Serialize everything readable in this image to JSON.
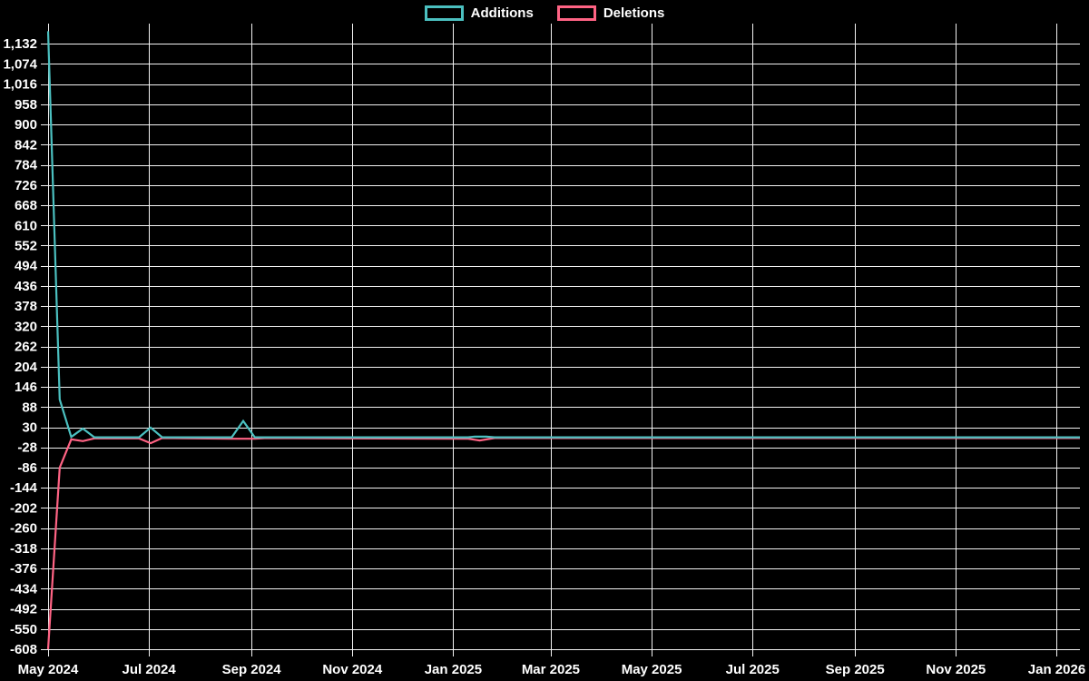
{
  "colors": {
    "background": "#000000",
    "grid": "#f2f2f2",
    "text": "#ffffff",
    "additions": "#4bc0c0",
    "deletions": "#ff6384"
  },
  "legend": {
    "items": [
      {
        "label": "Additions",
        "color": "#4bc0c0"
      },
      {
        "label": "Deletions",
        "color": "#ff6384"
      }
    ]
  },
  "chart_data": {
    "type": "line",
    "title": "",
    "xlabel": "",
    "ylabel": "",
    "grid": true,
    "legend_position": "top",
    "x_axis": {
      "domain": [
        "2024-05-01",
        "2026-01-15"
      ],
      "ticks": [
        {
          "label": "May 2024",
          "date": "2024-05-01"
        },
        {
          "label": "Jul 2024",
          "date": "2024-07-01"
        },
        {
          "label": "Sep 2024",
          "date": "2024-09-01"
        },
        {
          "label": "Nov 2024",
          "date": "2024-11-01"
        },
        {
          "label": "Jan 2025",
          "date": "2025-01-01"
        },
        {
          "label": "Mar 2025",
          "date": "2025-03-01"
        },
        {
          "label": "May 2025",
          "date": "2025-05-01"
        },
        {
          "label": "Jul 2025",
          "date": "2025-07-01"
        },
        {
          "label": "Sep 2025",
          "date": "2025-09-01"
        },
        {
          "label": "Nov 2025",
          "date": "2025-11-01"
        },
        {
          "label": "Jan 2026",
          "date": "2026-01-01"
        }
      ]
    },
    "y_axis": {
      "domain": [
        -608,
        1190
      ],
      "tick_labels": [
        "1,132",
        "1,074",
        "1,016",
        "958",
        "900",
        "842",
        "784",
        "726",
        "668",
        "610",
        "552",
        "494",
        "436",
        "378",
        "320",
        "262",
        "204",
        "146",
        "88",
        "30",
        "-28",
        "-86",
        "-144",
        "-202",
        "-260",
        "-318",
        "-376",
        "-434",
        "-492",
        "-550",
        "-608"
      ]
    },
    "series": [
      {
        "name": "Deletions",
        "color": "#ff6384",
        "points": [
          [
            "2024-05-01",
            -608
          ],
          [
            "2024-05-08",
            -86
          ],
          [
            "2024-05-15",
            -5
          ],
          [
            "2024-05-22",
            -10
          ],
          [
            "2024-05-29",
            -2
          ],
          [
            "2024-06-25",
            -2
          ],
          [
            "2024-07-02",
            -16
          ],
          [
            "2024-07-09",
            -1
          ],
          [
            "2024-08-20",
            -3
          ],
          [
            "2024-09-03",
            -3
          ],
          [
            "2024-09-10",
            -1
          ],
          [
            "2025-01-10",
            -3
          ],
          [
            "2025-01-17",
            -8
          ],
          [
            "2025-01-26",
            -1
          ],
          [
            "2026-01-15",
            -1
          ]
        ]
      },
      {
        "name": "Additions",
        "color": "#4bc0c0",
        "points": [
          [
            "2024-05-01",
            1168
          ],
          [
            "2024-05-08",
            110
          ],
          [
            "2024-05-15",
            2
          ],
          [
            "2024-05-22",
            26
          ],
          [
            "2024-05-29",
            1
          ],
          [
            "2024-06-25",
            1
          ],
          [
            "2024-07-02",
            29
          ],
          [
            "2024-07-09",
            1
          ],
          [
            "2024-08-20",
            1
          ],
          [
            "2024-08-27",
            48
          ],
          [
            "2024-09-03",
            1
          ],
          [
            "2025-01-10",
            1
          ],
          [
            "2025-01-14",
            3
          ],
          [
            "2025-01-21",
            3
          ],
          [
            "2025-01-26",
            1
          ],
          [
            "2026-01-15",
            1
          ]
        ]
      }
    ]
  }
}
